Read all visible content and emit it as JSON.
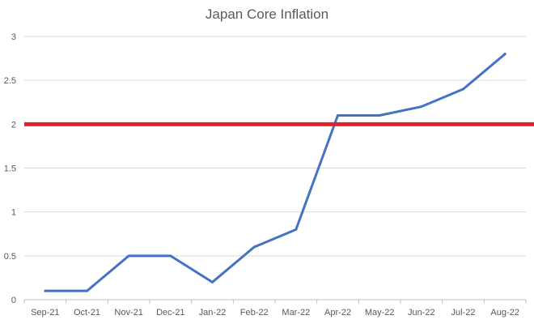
{
  "chart_data": {
    "type": "line",
    "title": "Japan Core Inflation",
    "xlabel": "",
    "ylabel": "",
    "categories": [
      "Sep-21",
      "Oct-21",
      "Nov-21",
      "Dec-21",
      "Jan-22",
      "Feb-22",
      "Mar-22",
      "Apr-22",
      "May-22",
      "Jun-22",
      "Jul-22",
      "Aug-22"
    ],
    "series": [
      {
        "values": [
          0.1,
          0.1,
          0.5,
          0.5,
          0.2,
          0.6,
          0.8,
          2.1,
          2.1,
          2.2,
          2.4,
          2.8
        ]
      }
    ],
    "reference_line": {
      "value": 2
    },
    "ylim": [
      0,
      3
    ],
    "yticks": [
      0,
      0.5,
      1,
      1.5,
      2,
      2.5,
      3
    ],
    "grid": true,
    "legend": "none",
    "colors": {
      "series": "#4472C4",
      "reference_line": "#E0202A",
      "grid": "#D9D9D9",
      "axis": "#BFBFBF",
      "text": "#595959"
    }
  }
}
